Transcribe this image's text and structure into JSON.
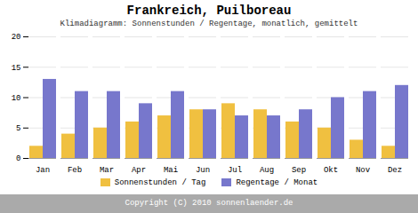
{
  "chart_data": {
    "type": "bar",
    "title": "Frankreich, Puilboreau",
    "subtitle": "Klimadiagramm: Sonnenstunden / Regentage, monatlich, gemittelt",
    "caption": "Copyright (C) 2010 sonnenlaender.de",
    "categories": [
      "Jan",
      "Feb",
      "Mar",
      "Apr",
      "Mai",
      "Jun",
      "Jul",
      "Aug",
      "Sep",
      "Okt",
      "Nov",
      "Dez"
    ],
    "series": [
      {
        "name": "Sonnenstunden / Tag",
        "color": "#F0C040",
        "values": [
          2,
          4,
          5,
          6,
          7,
          8,
          9,
          8,
          6,
          5,
          3,
          2
        ]
      },
      {
        "name": "Regentage / Monat",
        "color": "#7777CC",
        "values": [
          13,
          11,
          11,
          9,
          11,
          8,
          7,
          7,
          8,
          10,
          11,
          12
        ]
      }
    ],
    "ylim": [
      0,
      20
    ],
    "yticks": [
      0,
      5,
      10,
      15,
      20
    ],
    "grid": true,
    "legend": "bottom"
  }
}
